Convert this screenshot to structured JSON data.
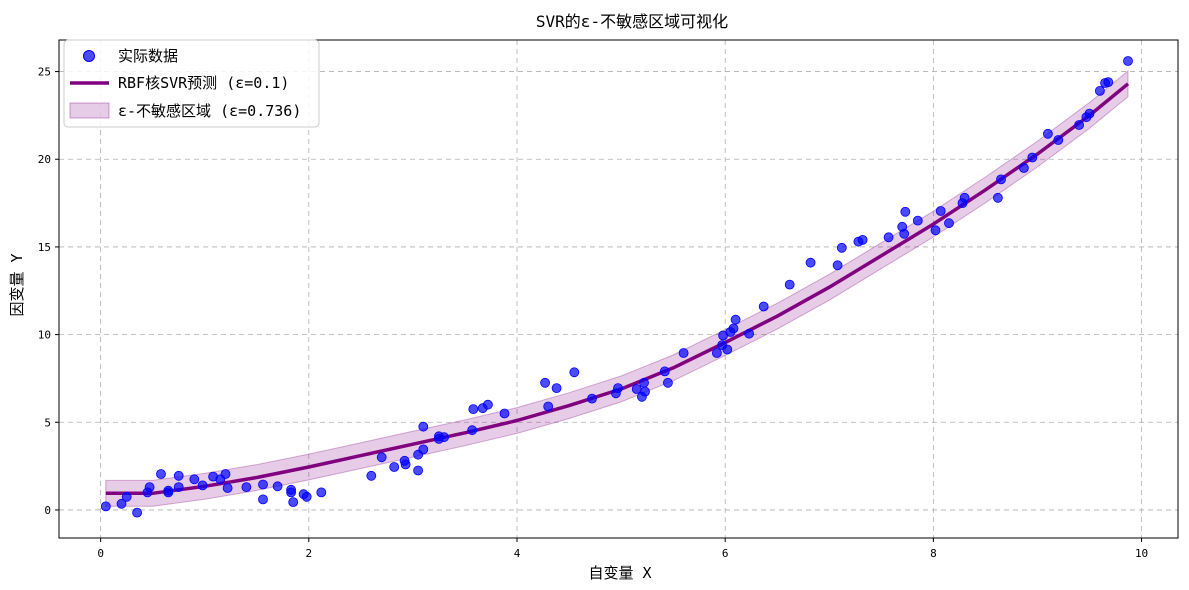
{
  "chart_data": {
    "type": "scatter",
    "title": "SVR的ε-不敏感区域可视化",
    "xlabel": "自变量 X",
    "ylabel": "因变量 Y",
    "xlim": [
      -0.4,
      10.35
    ],
    "ylim": [
      -1.6,
      26.8
    ],
    "xticks": [
      0,
      2,
      4,
      6,
      8,
      10
    ],
    "yticks": [
      0,
      5,
      10,
      15,
      20,
      25
    ],
    "grid": true,
    "legend_position": "top-left",
    "epsilon_band_width": 0.736,
    "series": [
      {
        "name": "实际数据",
        "type": "scatter",
        "color": "#0000ff",
        "points": [
          [
            0.05,
            0.2
          ],
          [
            0.2,
            0.35
          ],
          [
            0.25,
            0.75
          ],
          [
            0.35,
            -0.15
          ],
          [
            0.45,
            1.0
          ],
          [
            0.47,
            1.3
          ],
          [
            0.58,
            2.05
          ],
          [
            0.65,
            1.0
          ],
          [
            0.65,
            1.1
          ],
          [
            0.75,
            1.95
          ],
          [
            0.75,
            1.3
          ],
          [
            0.9,
            1.75
          ],
          [
            0.98,
            1.4
          ],
          [
            1.08,
            1.9
          ],
          [
            1.15,
            1.75
          ],
          [
            1.2,
            2.05
          ],
          [
            1.22,
            1.25
          ],
          [
            1.4,
            1.3
          ],
          [
            1.56,
            0.6
          ],
          [
            1.56,
            1.45
          ],
          [
            1.7,
            1.35
          ],
          [
            1.83,
            1.0
          ],
          [
            1.83,
            1.15
          ],
          [
            1.85,
            0.45
          ],
          [
            1.95,
            0.9
          ],
          [
            1.98,
            0.75
          ],
          [
            2.12,
            1.0
          ],
          [
            2.6,
            1.95
          ],
          [
            2.7,
            3.0
          ],
          [
            2.82,
            2.45
          ],
          [
            2.92,
            2.8
          ],
          [
            2.93,
            2.6
          ],
          [
            3.05,
            2.25
          ],
          [
            3.05,
            3.15
          ],
          [
            3.1,
            4.75
          ],
          [
            3.1,
            3.45
          ],
          [
            3.25,
            4.05
          ],
          [
            3.25,
            4.2
          ],
          [
            3.3,
            4.15
          ],
          [
            3.57,
            4.55
          ],
          [
            3.58,
            5.75
          ],
          [
            3.67,
            5.8
          ],
          [
            3.72,
            6.0
          ],
          [
            3.88,
            5.5
          ],
          [
            4.27,
            7.25
          ],
          [
            4.3,
            5.9
          ],
          [
            4.38,
            6.95
          ],
          [
            4.55,
            7.85
          ],
          [
            4.72,
            6.35
          ],
          [
            4.95,
            6.65
          ],
          [
            4.97,
            6.95
          ],
          [
            5.15,
            6.9
          ],
          [
            5.2,
            6.45
          ],
          [
            5.22,
            7.25
          ],
          [
            5.23,
            6.75
          ],
          [
            5.42,
            7.9
          ],
          [
            5.45,
            7.25
          ],
          [
            5.6,
            8.95
          ],
          [
            5.92,
            8.95
          ],
          [
            5.97,
            9.4
          ],
          [
            5.98,
            9.95
          ],
          [
            6.02,
            9.15
          ],
          [
            6.05,
            10.15
          ],
          [
            6.08,
            10.35
          ],
          [
            6.1,
            10.85
          ],
          [
            6.23,
            10.05
          ],
          [
            6.37,
            11.6
          ],
          [
            6.62,
            12.85
          ],
          [
            6.82,
            14.1
          ],
          [
            7.08,
            13.95
          ],
          [
            7.12,
            14.95
          ],
          [
            7.28,
            15.3
          ],
          [
            7.32,
            15.4
          ],
          [
            7.57,
            15.55
          ],
          [
            7.7,
            16.15
          ],
          [
            7.72,
            15.75
          ],
          [
            7.73,
            17.0
          ],
          [
            7.85,
            16.5
          ],
          [
            8.02,
            15.95
          ],
          [
            8.07,
            17.05
          ],
          [
            8.15,
            16.35
          ],
          [
            8.28,
            17.5
          ],
          [
            8.3,
            17.8
          ],
          [
            8.62,
            17.8
          ],
          [
            8.65,
            18.85
          ],
          [
            8.87,
            19.5
          ],
          [
            8.95,
            20.1
          ],
          [
            9.1,
            21.45
          ],
          [
            9.2,
            21.1
          ],
          [
            9.4,
            21.95
          ],
          [
            9.47,
            22.4
          ],
          [
            9.5,
            22.6
          ],
          [
            9.6,
            23.9
          ],
          [
            9.65,
            24.35
          ],
          [
            9.68,
            24.4
          ],
          [
            9.87,
            25.6
          ]
        ]
      },
      {
        "name": "RBF核SVR预测 (ε=0.1)",
        "type": "line",
        "color": "#800080",
        "x": [
          0.05,
          0.5,
          1.0,
          1.5,
          2.0,
          2.5,
          3.0,
          3.5,
          4.0,
          4.5,
          5.0,
          5.5,
          6.0,
          6.5,
          7.0,
          7.5,
          8.0,
          8.5,
          9.0,
          9.5,
          9.87
        ],
        "y": [
          0.95,
          0.95,
          1.35,
          1.85,
          2.45,
          3.1,
          3.75,
          4.4,
          5.1,
          5.95,
          6.9,
          8.1,
          9.55,
          11.05,
          12.7,
          14.5,
          16.3,
          18.25,
          20.3,
          22.5,
          24.3
        ]
      },
      {
        "name": "ε-不敏感区域 (ε=0.736)",
        "type": "band",
        "color": "#800080"
      }
    ]
  }
}
